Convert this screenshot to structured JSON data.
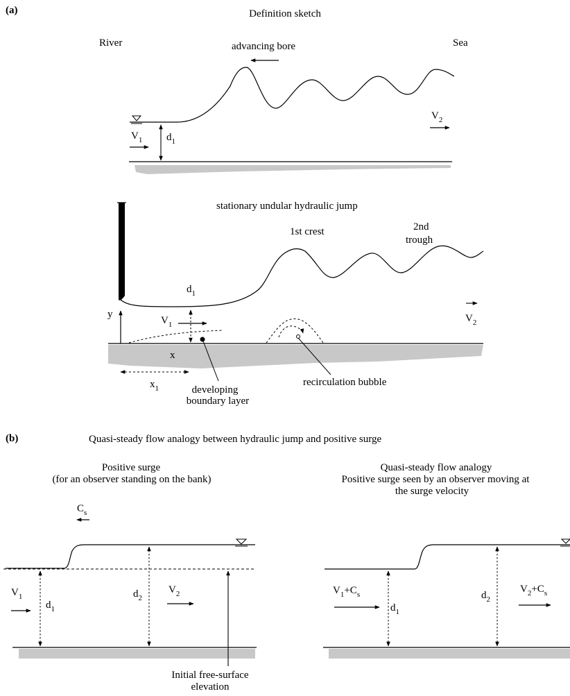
{
  "panel_a": {
    "label": "(a)",
    "title": "Definition sketch",
    "bore": {
      "left_label": "River",
      "right_label": "Sea",
      "arrow_label": "advancing bore",
      "v1": "V",
      "v1_sub": "1",
      "d1": "d",
      "d1_sub": "1",
      "v2": "V",
      "v2_sub": "2"
    },
    "jump": {
      "title": "stationary undular hydraulic jump",
      "crest_label": "1st crest",
      "trough_label_1": "2nd",
      "trough_label_2": "trough",
      "d1": "d",
      "d1_sub": "1",
      "v1": "V",
      "v1_sub": "1",
      "v2": "V",
      "v2_sub": "2",
      "y_axis": "y",
      "x_axis": "x",
      "x1": "x",
      "x1_sub": "1",
      "boundary_layer_1": "developing",
      "boundary_layer_2": "boundary layer",
      "recirculation": "recirculation bubble"
    }
  },
  "panel_b": {
    "label": "(b)",
    "title": "Quasi-steady flow analogy between hydraulic jump and positive surge",
    "left": {
      "title_1": "Positive surge",
      "title_2": "(for an observer standing on the bank)",
      "cs": "C",
      "cs_sub": "s",
      "v1": "V",
      "v1_sub": "1",
      "d1": "d",
      "d1_sub": "1",
      "d2": "d",
      "d2_sub": "2",
      "v2": "V",
      "v2_sub": "2",
      "initial_1": "Initial free-surface",
      "initial_2": "elevation"
    },
    "right": {
      "title_1": "Quasi-steady flow analogy",
      "title_2": "Positive surge seen by an observer moving at",
      "title_3": "the surge velocity",
      "v1": "V",
      "v1_sub": "1",
      "v1_plus": "+C",
      "v1_plus_sub": "s",
      "d1": "d",
      "d1_sub": "1",
      "d2": "d",
      "d2_sub": "2",
      "v2": "V",
      "v2_sub": "2",
      "v2_plus": "+C",
      "v2_plus_sub": "s"
    }
  }
}
